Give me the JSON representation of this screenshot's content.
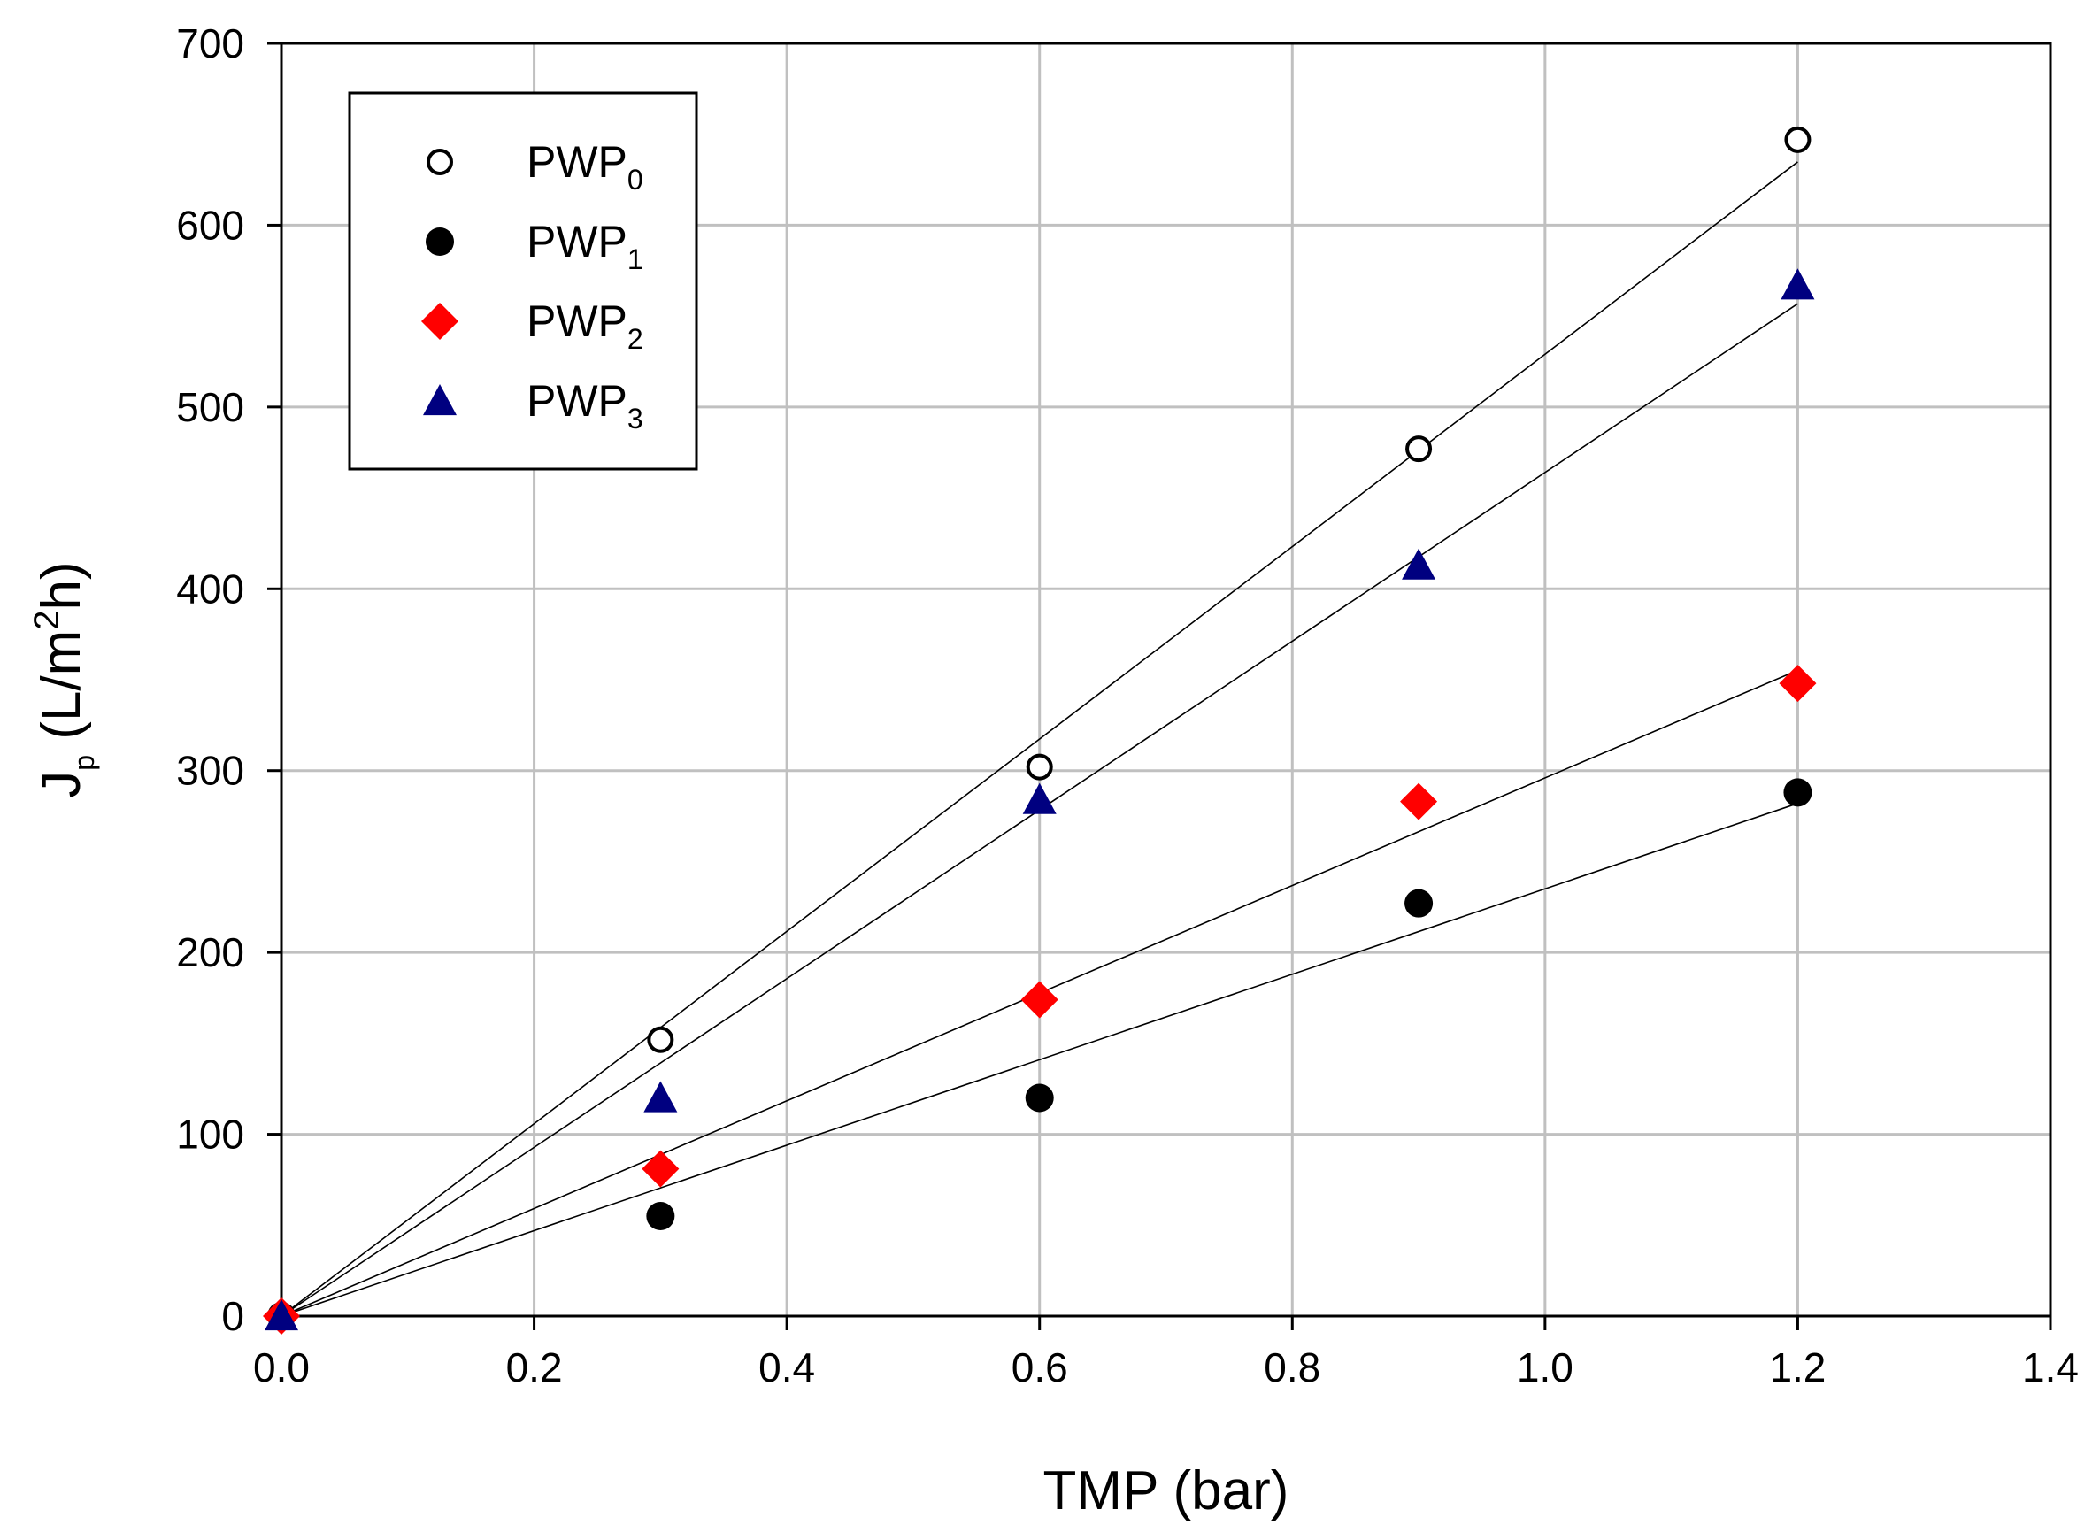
{
  "chart_data": {
    "type": "scatter",
    "title": "",
    "xlabel": "TMP (bar)",
    "ylabel": {
      "base": "J",
      "sub": "p",
      "mid": " (L/m",
      "sup": "2",
      "end": "h)"
    },
    "xlim": [
      0,
      1.4
    ],
    "ylim": [
      0,
      700
    ],
    "xticks": [
      0,
      0.2,
      0.4,
      0.6,
      0.8,
      1.0,
      1.2,
      1.4
    ],
    "xtick_labels": [
      "0.0",
      "0.2",
      "0.4",
      "0.6",
      "0.8",
      "1.0",
      "1.2",
      "1.4"
    ],
    "yticks": [
      0,
      100,
      200,
      300,
      400,
      500,
      600,
      700
    ],
    "ytick_labels": [
      "0",
      "100",
      "200",
      "300",
      "400",
      "500",
      "600",
      "700"
    ],
    "grid": true,
    "legend_position": "top-left",
    "series": [
      {
        "name": "PWP0",
        "label_base": "PWP",
        "label_sub": "0",
        "marker": "circle-open",
        "color": "#000000",
        "x": [
          0,
          0.3,
          0.6,
          0.9,
          1.2
        ],
        "y": [
          0,
          152,
          302,
          477,
          647
        ],
        "fit_slope": 529
      },
      {
        "name": "PWP1",
        "label_base": "PWP",
        "label_sub": "1",
        "marker": "circle-filled",
        "color": "#000000",
        "x": [
          0,
          0.3,
          0.6,
          0.9,
          1.2
        ],
        "y": [
          0,
          55,
          120,
          227,
          288
        ],
        "fit_slope": 235
      },
      {
        "name": "PWP2",
        "label_base": "PWP",
        "label_sub": "2",
        "marker": "diamond",
        "color": "#ff0000",
        "x": [
          0,
          0.3,
          0.6,
          0.9,
          1.2
        ],
        "y": [
          0,
          81,
          174,
          283,
          348
        ],
        "fit_slope": 296
      },
      {
        "name": "PWP3",
        "label_base": "PWP",
        "label_sub": "3",
        "marker": "triangle",
        "color": "#000080",
        "x": [
          0,
          0.3,
          0.6,
          0.9,
          1.2
        ],
        "y": [
          0,
          120,
          284,
          413,
          567
        ],
        "fit_slope": 464
      }
    ]
  }
}
